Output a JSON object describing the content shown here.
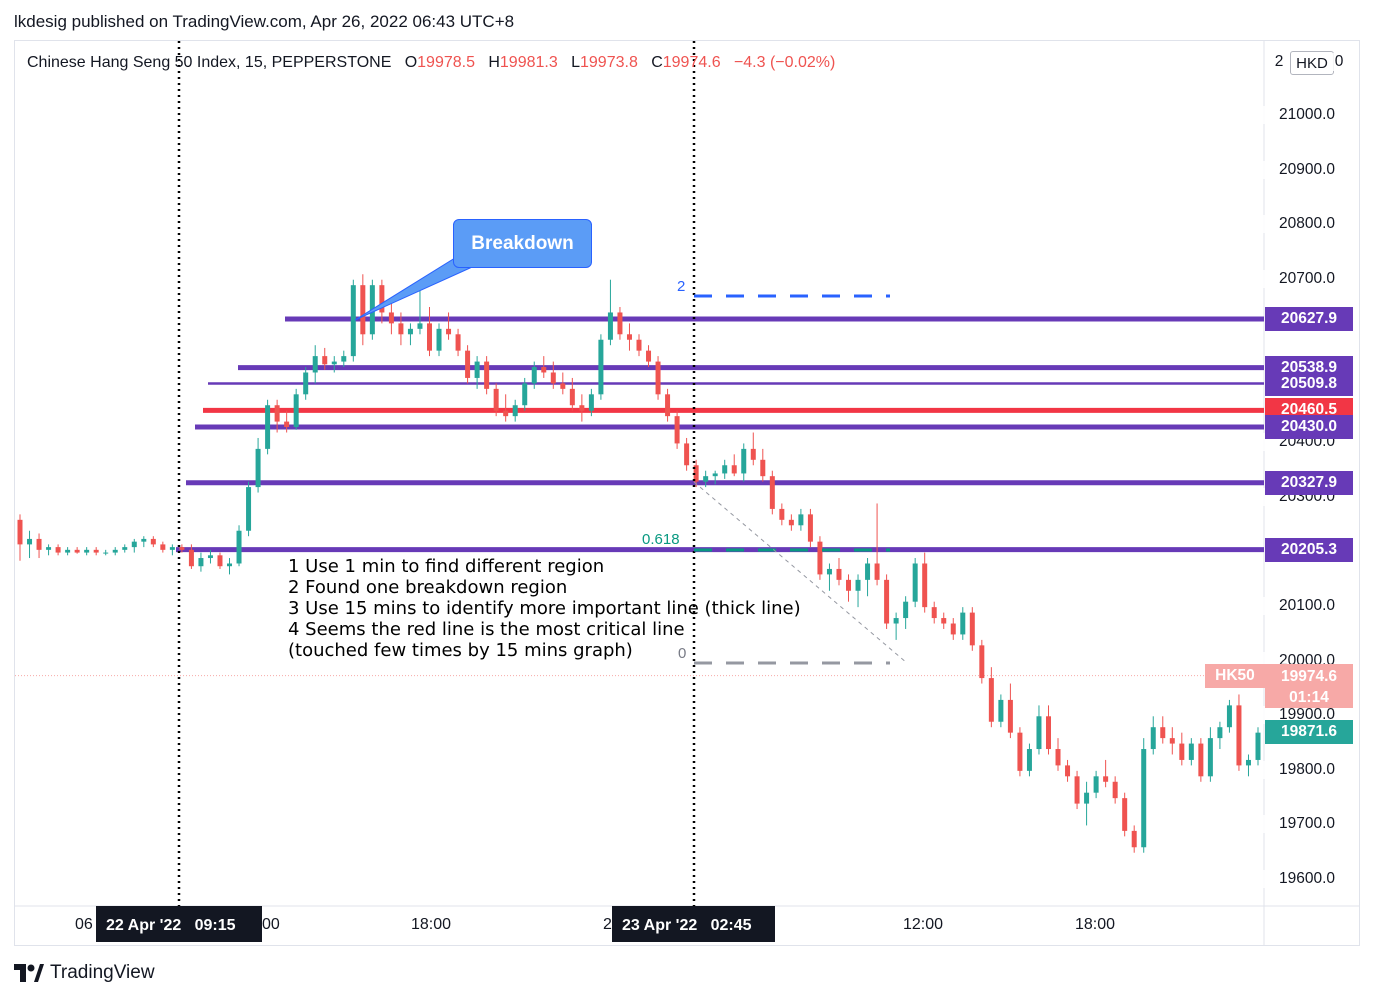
{
  "header": {
    "published": "lkdesig published on TradingView.com, Apr 26, 2022 06:43 UTC+8"
  },
  "legend": {
    "symbol": "Chinese Hang Seng 50 Index, 15, PEPPERSTONE",
    "o_label": "O",
    "o_value": "19978.5",
    "h_label": "H",
    "h_value": "19981.3",
    "l_label": "L",
    "l_value": "19973.8",
    "c_label": "C",
    "c_value": "19974.6",
    "change": "−4.3 (−0.02%)"
  },
  "currency": "HKD",
  "price_axis_partial_top": "2",
  "price_axis_partial_right": "0",
  "callout": {
    "text": "Breakdown"
  },
  "notes": {
    "line1": "1 Use 1 min to find different region",
    "line2": "2 Found one breakdown region",
    "line3": "3 Use 15 mins to identify more important line (thick line)",
    "line4": "4 Seems the red line is the most critical line",
    "line5": "(touched few times by 15 mins graph)"
  },
  "fib": {
    "level_top": "2",
    "level_mid": "0.618",
    "level_bottom": "0"
  },
  "time_axis": {
    "cross_left": "22 Apr '22   09:15",
    "cross_right": "23 Apr '22   02:45",
    "ticks": [
      "06",
      "00",
      "18:00",
      "2",
      "12:00",
      "18:00"
    ]
  },
  "last_price": {
    "symbol": "HK50",
    "value": "19974.6",
    "countdown": "01:14"
  },
  "logo": {
    "text": "TradingView",
    "icon": "tradingview-logo-icon"
  },
  "colors": {
    "up": "#26a69a",
    "down": "#ef5350",
    "purple": "#673ab7",
    "red_line": "#f23645",
    "fib_blue": "#2962ff"
  },
  "chart_data": {
    "type": "candlestick",
    "title": "",
    "y_axis_ticks": [
      "21000.0",
      "20900.0",
      "20800.0",
      "20700.0",
      "20100.0",
      "19800.0",
      "19700.0",
      "19600.0"
    ],
    "y_axis_ticks_partially_covered": [
      "20400.0",
      "20300.0",
      "20000.0",
      "19900.0"
    ],
    "ylim": [
      19550,
      21130
    ],
    "horizontal_levels": [
      {
        "value": 20627.9,
        "label": "20627.9",
        "color": "#673ab7",
        "thick": true
      },
      {
        "value": 20538.9,
        "label": "20538.9",
        "color": "#673ab7",
        "thick": true
      },
      {
        "value": 20509.8,
        "label": "20509.8",
        "color": "#673ab7",
        "thick": false
      },
      {
        "value": 20460.5,
        "label": "20460.5",
        "color": "#f23645",
        "thick": true
      },
      {
        "value": 20430.0,
        "label": "20430.0",
        "color": "#673ab7",
        "thick": true
      },
      {
        "value": 20327.9,
        "label": "20327.9",
        "color": "#673ab7",
        "thick": true
      },
      {
        "value": 20205.3,
        "label": "20205.3",
        "color": "#673ab7",
        "thick": true
      }
    ],
    "right_tag": {
      "value": 19871.6,
      "label": "19871.6",
      "color": "#26a69a"
    },
    "last_close": 19974.6,
    "candles_ohlc": [
      [
        20260,
        20270,
        20185,
        20215
      ],
      [
        20215,
        20240,
        20190,
        20225
      ],
      [
        20225,
        20235,
        20190,
        20205
      ],
      [
        20205,
        20215,
        20195,
        20210
      ],
      [
        20210,
        20215,
        20195,
        20200
      ],
      [
        20200,
        20210,
        20195,
        20205
      ],
      [
        20205,
        20210,
        20198,
        20200
      ],
      [
        20200,
        20210,
        20195,
        20205
      ],
      [
        20205,
        20210,
        20195,
        20200
      ],
      [
        20200,
        20205,
        20195,
        20200
      ],
      [
        20200,
        20210,
        20195,
        20205
      ],
      [
        20205,
        20215,
        20200,
        20210
      ],
      [
        20210,
        20225,
        20200,
        20220
      ],
      [
        20220,
        20230,
        20210,
        20225
      ],
      [
        20225,
        20230,
        20210,
        20215
      ],
      [
        20215,
        20220,
        20200,
        20205
      ],
      [
        20205,
        20215,
        20195,
        20210
      ],
      [
        20210,
        20215,
        20200,
        20205
      ],
      [
        20205,
        20215,
        20170,
        20175
      ],
      [
        20175,
        20200,
        20165,
        20190
      ],
      [
        20190,
        20205,
        20180,
        20195
      ],
      [
        20195,
        20200,
        20170,
        20175
      ],
      [
        20175,
        20190,
        20160,
        20180
      ],
      [
        20180,
        20250,
        20175,
        20240
      ],
      [
        20240,
        20330,
        20230,
        20320
      ],
      [
        20320,
        20410,
        20310,
        20390
      ],
      [
        20390,
        20480,
        20380,
        20470
      ],
      [
        20470,
        20480,
        20420,
        20440
      ],
      [
        20440,
        20460,
        20420,
        20430
      ],
      [
        20430,
        20500,
        20425,
        20490
      ],
      [
        20490,
        20540,
        20480,
        20530
      ],
      [
        20530,
        20580,
        20510,
        20560
      ],
      [
        20560,
        20575,
        20535,
        20545
      ],
      [
        20545,
        20560,
        20530,
        20550
      ],
      [
        20550,
        20570,
        20540,
        20560
      ],
      [
        20560,
        20700,
        20550,
        20690
      ],
      [
        20690,
        20710,
        20580,
        20600
      ],
      [
        20600,
        20700,
        20590,
        20690
      ],
      [
        20690,
        20700,
        20620,
        20640
      ],
      [
        20640,
        20660,
        20600,
        20620
      ],
      [
        20620,
        20640,
        20580,
        20600
      ],
      [
        20600,
        20620,
        20580,
        20610
      ],
      [
        20610,
        20680,
        20600,
        20620
      ],
      [
        20620,
        20650,
        20560,
        20570
      ],
      [
        20570,
        20620,
        20560,
        20610
      ],
      [
        20610,
        20640,
        20590,
        20600
      ],
      [
        20600,
        20610,
        20560,
        20570
      ],
      [
        20570,
        20580,
        20510,
        20520
      ],
      [
        20520,
        20560,
        20500,
        20550
      ],
      [
        20550,
        20560,
        20490,
        20500
      ],
      [
        20500,
        20510,
        20450,
        20460
      ],
      [
        20460,
        20490,
        20440,
        20450
      ],
      [
        20450,
        20480,
        20440,
        20470
      ],
      [
        20470,
        20520,
        20460,
        20510
      ],
      [
        20510,
        20550,
        20500,
        20540
      ],
      [
        20540,
        20560,
        20520,
        20530
      ],
      [
        20530,
        20550,
        20500,
        20510
      ],
      [
        20510,
        20530,
        20490,
        20500
      ],
      [
        20500,
        20520,
        20460,
        20470
      ],
      [
        20470,
        20490,
        20440,
        20460
      ],
      [
        20460,
        20500,
        20450,
        20490
      ],
      [
        20490,
        20600,
        20480,
        20590
      ],
      [
        20590,
        20700,
        20580,
        20640
      ],
      [
        20640,
        20650,
        20590,
        20600
      ],
      [
        20600,
        20620,
        20570,
        20590
      ],
      [
        20590,
        20600,
        20560,
        20570
      ],
      [
        20570,
        20580,
        20540,
        20550
      ],
      [
        20550,
        20560,
        20480,
        20490
      ],
      [
        20490,
        20500,
        20440,
        20450
      ],
      [
        20450,
        20460,
        20390,
        20400
      ],
      [
        20400,
        20410,
        20350,
        20360
      ],
      [
        20360,
        20370,
        20320,
        20330
      ],
      [
        20330,
        20350,
        20320,
        20340
      ],
      [
        20340,
        20350,
        20325,
        20345
      ],
      [
        20345,
        20370,
        20335,
        20360
      ],
      [
        20360,
        20380,
        20340,
        20345
      ],
      [
        20345,
        20400,
        20330,
        20390
      ],
      [
        20390,
        20420,
        20360,
        20370
      ],
      [
        20370,
        20390,
        20330,
        20340
      ],
      [
        20340,
        20350,
        20270,
        20280
      ],
      [
        20280,
        20290,
        20250,
        20260
      ],
      [
        20260,
        20270,
        20240,
        20250
      ],
      [
        20250,
        20280,
        20240,
        20270
      ],
      [
        20270,
        20280,
        20210,
        20220
      ],
      [
        20220,
        20230,
        20150,
        20160
      ],
      [
        20160,
        20180,
        20130,
        20170
      ],
      [
        20170,
        20190,
        20140,
        20150
      ],
      [
        20150,
        20160,
        20110,
        20130
      ],
      [
        20130,
        20160,
        20100,
        20150
      ],
      [
        20150,
        20190,
        20120,
        20180
      ],
      [
        20180,
        20290,
        20140,
        20150
      ],
      [
        20150,
        20160,
        20060,
        20070
      ],
      [
        20070,
        20090,
        20040,
        20080
      ],
      [
        20080,
        20120,
        20060,
        20110
      ],
      [
        20110,
        20190,
        20100,
        20180
      ],
      [
        20180,
        20200,
        20090,
        20100
      ],
      [
        20100,
        20110,
        20070,
        20080
      ],
      [
        20080,
        20090,
        20060,
        20070
      ],
      [
        20070,
        20080,
        20040,
        20050
      ],
      [
        20050,
        20100,
        20040,
        20090
      ],
      [
        20090,
        20100,
        20020,
        20030
      ],
      [
        20030,
        20040,
        19960,
        19970
      ],
      [
        19970,
        19990,
        19880,
        19890
      ],
      [
        19890,
        19940,
        19880,
        19930
      ],
      [
        19930,
        19960,
        19860,
        19870
      ],
      [
        19870,
        19880,
        19790,
        19800
      ],
      [
        19800,
        19850,
        19790,
        19840
      ],
      [
        19840,
        19920,
        19830,
        19900
      ],
      [
        19900,
        19920,
        19830,
        19840
      ],
      [
        19840,
        19860,
        19800,
        19810
      ],
      [
        19810,
        19820,
        19780,
        19790
      ],
      [
        19790,
        19800,
        19730,
        19740
      ],
      [
        19740,
        19780,
        19700,
        19760
      ],
      [
        19760,
        19800,
        19750,
        19790
      ],
      [
        19790,
        19820,
        19770,
        19780
      ],
      [
        19780,
        19790,
        19740,
        19750
      ],
      [
        19750,
        19760,
        19680,
        19690
      ],
      [
        19690,
        19700,
        19650,
        19660
      ],
      [
        19660,
        19860,
        19650,
        19840
      ],
      [
        19840,
        19900,
        19830,
        19880
      ],
      [
        19880,
        19900,
        19850,
        19860
      ],
      [
        19860,
        19880,
        19830,
        19850
      ],
      [
        19850,
        19870,
        19810,
        19820
      ],
      [
        19820,
        19860,
        19810,
        19850
      ],
      [
        19850,
        19860,
        19780,
        19790
      ],
      [
        19790,
        19880,
        19780,
        19860
      ],
      [
        19860,
        19890,
        19840,
        19880
      ],
      [
        19880,
        19930,
        19870,
        19920
      ],
      [
        19920,
        19940,
        19800,
        19810
      ],
      [
        19810,
        19830,
        19790,
        19820
      ],
      [
        19820,
        19880,
        19810,
        19870
      ]
    ]
  }
}
